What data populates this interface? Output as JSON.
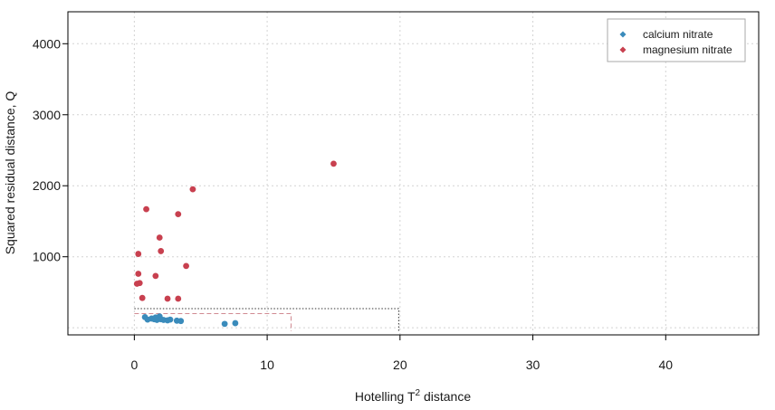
{
  "chart_data": {
    "type": "scatter",
    "title": "",
    "xlabel": "Hotelling T² distance",
    "ylabel": "Squared residual distance, Q",
    "xlim": [
      -5,
      47
    ],
    "ylim": [
      -100,
      4450
    ],
    "xticks": [
      0,
      10,
      20,
      30,
      40
    ],
    "yticks": [
      1000,
      2000,
      3000,
      4000
    ],
    "grid": true,
    "legend_position": "top-right",
    "series": [
      {
        "name": "calcium nitrate",
        "color": "#3a8bbb",
        "points": [
          [
            0.8,
            150
          ],
          [
            1.0,
            115
          ],
          [
            1.3,
            130
          ],
          [
            1.5,
            120
          ],
          [
            1.7,
            110
          ],
          [
            1.9,
            160
          ],
          [
            2.0,
            120
          ],
          [
            2.2,
            110
          ],
          [
            2.5,
            105
          ],
          [
            2.7,
            115
          ],
          [
            3.2,
            100
          ],
          [
            3.5,
            95
          ],
          [
            1.6,
            145
          ],
          [
            6.8,
            55
          ],
          [
            7.6,
            65
          ]
        ]
      },
      {
        "name": "magnesium nitrate",
        "color": "#c8404f",
        "points": [
          [
            15.0,
            2310
          ],
          [
            4.4,
            1950
          ],
          [
            0.9,
            1670
          ],
          [
            3.3,
            1600
          ],
          [
            1.9,
            1270
          ],
          [
            2.0,
            1080
          ],
          [
            0.3,
            1040
          ],
          [
            3.9,
            870
          ],
          [
            0.3,
            760
          ],
          [
            1.6,
            730
          ],
          [
            0.2,
            620
          ],
          [
            0.4,
            630
          ],
          [
            0.6,
            420
          ],
          [
            2.5,
            410
          ],
          [
            3.3,
            410
          ]
        ]
      }
    ],
    "limits": [
      {
        "style": "dotted",
        "color": "#333333",
        "x": 19.9,
        "y": 270
      },
      {
        "style": "dashed",
        "color": "#d08a92",
        "x": 11.8,
        "y": 200
      }
    ]
  }
}
